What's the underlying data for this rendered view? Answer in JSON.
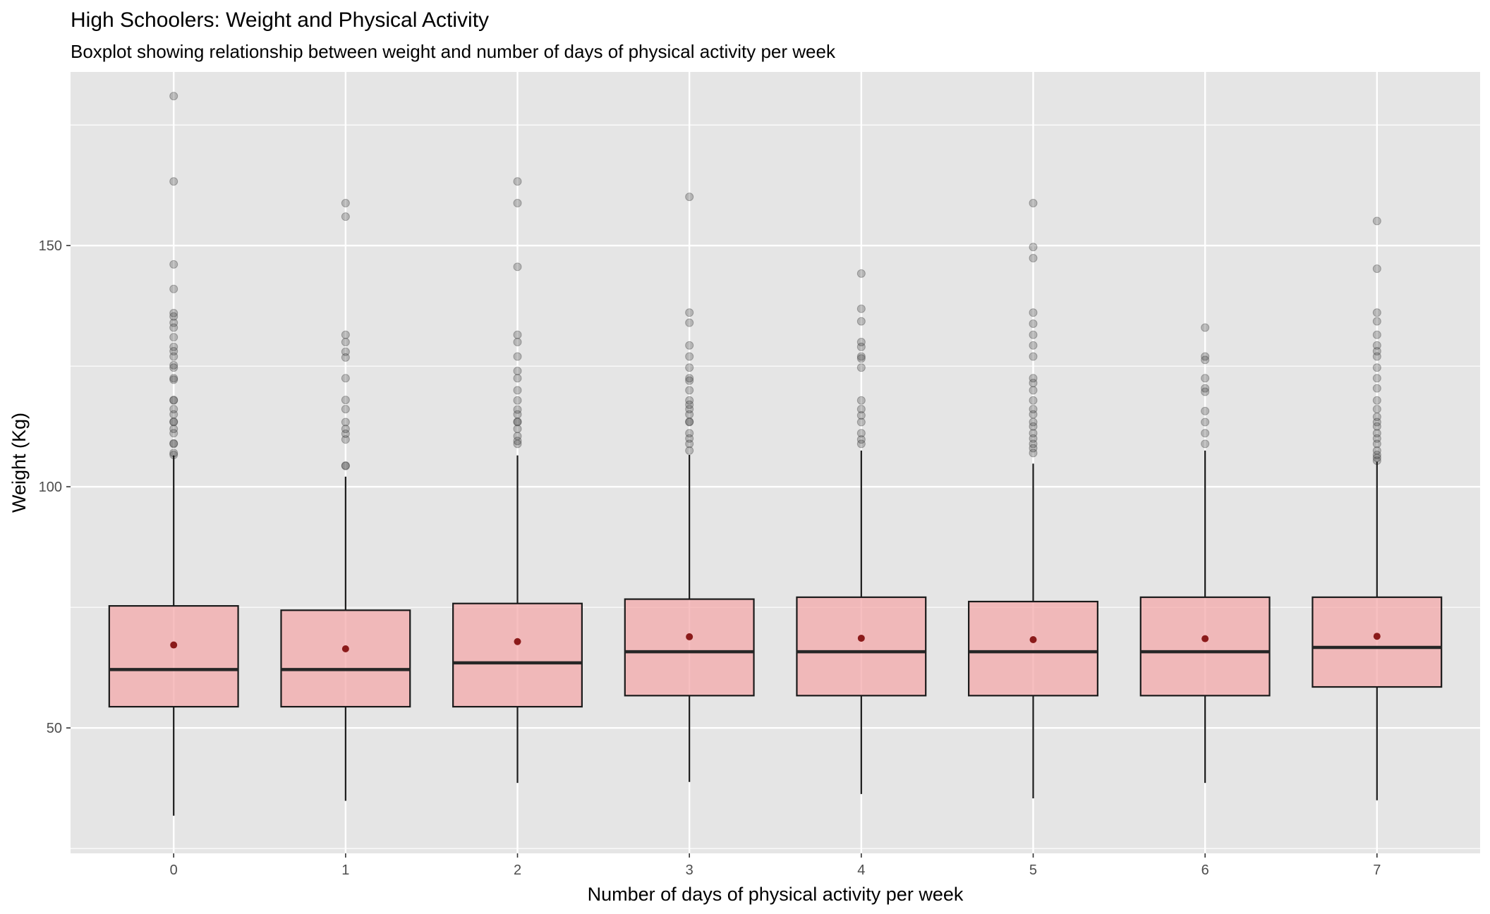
{
  "chart_data": {
    "type": "boxplot",
    "title": "High Schoolers: Weight and Physical Activity",
    "subtitle": "Boxplot showing relationship between weight and number of days of physical activity per week",
    "xlabel": "Number of days of physical activity per week",
    "ylabel": "Weight (Kg)",
    "ylim": [
      24,
      186
    ],
    "yticks": [
      "50",
      "100",
      "150"
    ],
    "y_tick_values": [
      50,
      100,
      150
    ],
    "grid": true,
    "legend": "none",
    "colors": {
      "panel": "#e5e5e5",
      "grid": "#ffffff",
      "box_fill": "#f4a6a8",
      "box_stroke": "#1a1a1a",
      "mean_point": "#8b1a1a",
      "outlier": "#333333"
    },
    "categories": [
      "0",
      "1",
      "2",
      "3",
      "4",
      "5",
      "6",
      "7"
    ],
    "boxes": [
      {
        "category": "0",
        "whisker_low": 31.8,
        "q1": 54.4,
        "median": 62.1,
        "q3": 75.3,
        "whisker_high": 106.5,
        "mean": 67.2,
        "outliers": [
          106.6,
          107.0,
          108.9,
          109.0,
          111.1,
          112.0,
          113.4,
          113.5,
          115.0,
          116.1,
          117.9,
          118.0,
          122.2,
          122.5,
          124.7,
          125.2,
          127.0,
          128.1,
          129.0,
          131.0,
          133.0,
          134.0,
          135.3,
          136.0,
          141.0,
          146.1,
          163.3,
          181.0
        ]
      },
      {
        "category": "1",
        "whisker_low": 34.9,
        "q1": 54.4,
        "median": 62.1,
        "q3": 74.4,
        "whisker_high": 102.1,
        "mean": 66.4,
        "outliers": [
          104.3,
          104.4,
          109.8,
          111.0,
          112.0,
          113.4,
          116.1,
          118.0,
          122.5,
          126.8,
          128.0,
          130.0,
          131.5,
          156.0,
          158.8
        ]
      },
      {
        "category": "2",
        "whisker_low": 38.6,
        "q1": 54.4,
        "median": 63.5,
        "q3": 75.8,
        "whisker_high": 106.5,
        "mean": 67.9,
        "outliers": [
          108.9,
          109.5,
          110.5,
          112.0,
          113.4,
          113.5,
          115.0,
          116.0,
          117.9,
          120.0,
          122.5,
          124.0,
          127.0,
          130.0,
          131.5,
          145.6,
          158.8,
          163.3
        ]
      },
      {
        "category": "3",
        "whisker_low": 38.8,
        "q1": 56.7,
        "median": 65.8,
        "q3": 76.7,
        "whisker_high": 106.6,
        "mean": 68.9,
        "outliers": [
          107.5,
          108.9,
          110.0,
          111.1,
          113.4,
          113.5,
          115.0,
          116.1,
          117.0,
          117.9,
          120.0,
          122.0,
          122.5,
          124.7,
          127.0,
          129.3,
          134.0,
          136.1,
          160.1
        ]
      },
      {
        "category": "4",
        "whisker_low": 36.3,
        "q1": 56.7,
        "median": 65.8,
        "q3": 77.1,
        "whisker_high": 107.5,
        "mean": 68.6,
        "outliers": [
          108.9,
          109.8,
          111.1,
          113.4,
          114.8,
          116.1,
          117.9,
          124.7,
          126.6,
          127.0,
          129.0,
          130.0,
          134.3,
          136.9,
          144.2
        ]
      },
      {
        "category": "5",
        "whisker_low": 35.4,
        "q1": 56.7,
        "median": 65.8,
        "q3": 76.2,
        "whisker_high": 104.8,
        "mean": 68.3,
        "outliers": [
          107.0,
          108.0,
          108.9,
          110.0,
          111.1,
          112.5,
          113.4,
          115.0,
          116.1,
          117.9,
          120.0,
          121.5,
          122.5,
          127.0,
          129.3,
          131.5,
          133.8,
          136.1,
          147.4,
          149.7,
          158.8
        ]
      },
      {
        "category": "6",
        "whisker_low": 38.6,
        "q1": 56.7,
        "median": 65.8,
        "q3": 77.1,
        "whisker_high": 107.5,
        "mean": 68.5,
        "outliers": [
          108.9,
          111.1,
          113.4,
          115.7,
          119.7,
          120.4,
          122.5,
          126.3,
          127.0,
          133.0
        ]
      },
      {
        "category": "7",
        "whisker_low": 35.0,
        "q1": 58.5,
        "median": 66.7,
        "q3": 77.1,
        "whisker_high": 105.2,
        "mean": 69.0,
        "outliers": [
          105.4,
          106.0,
          106.6,
          107.5,
          108.9,
          110.0,
          111.1,
          112.5,
          113.4,
          114.5,
          116.1,
          117.9,
          120.4,
          122.5,
          124.7,
          127.0,
          128.1,
          129.3,
          131.5,
          134.3,
          136.1,
          145.2,
          155.1
        ]
      }
    ]
  }
}
